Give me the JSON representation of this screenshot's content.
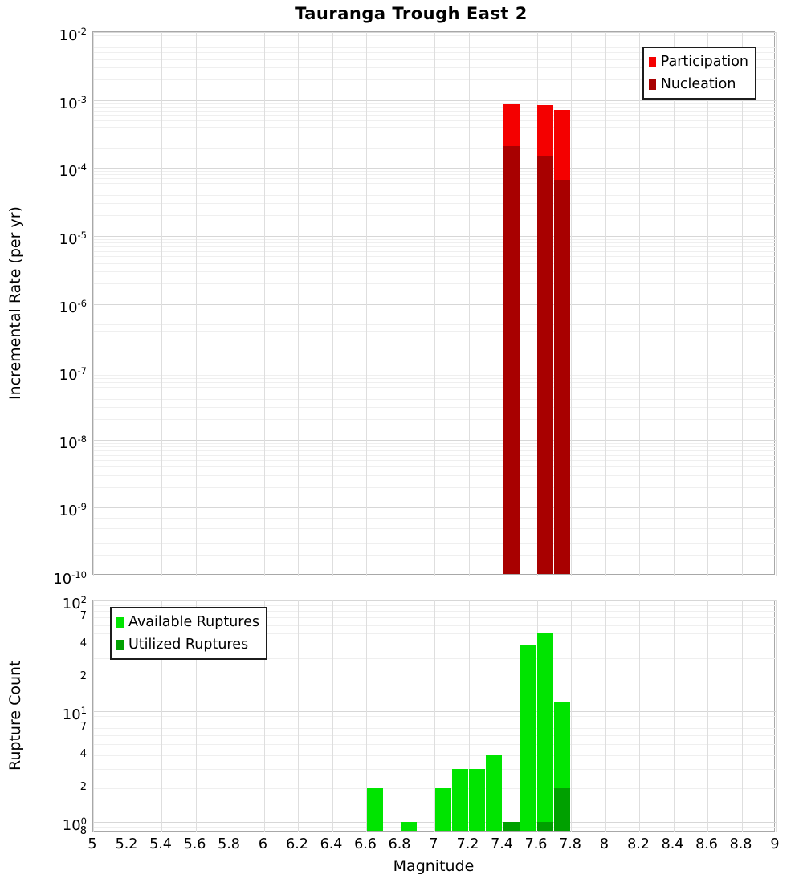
{
  "title": "Tauranga Trough East 2",
  "xlabel": "Magnitude",
  "x_ticks": [
    "5",
    "5.2",
    "5.4",
    "5.6",
    "5.8",
    "6",
    "6.2",
    "6.4",
    "6.6",
    "6.8",
    "7",
    "7.2",
    "7.4",
    "7.6",
    "7.8",
    "8",
    "8.2",
    "8.4",
    "8.6",
    "8.8",
    "9"
  ],
  "colors": {
    "participation": "#f40000",
    "nucleation": "#a80000",
    "available": "#00e400",
    "utilized": "#00a000",
    "grid_major": "#d7d7d7",
    "grid_minor": "#efefef",
    "plot_border": "#a8a8a8",
    "legend_border": "#1c1c1c"
  },
  "chart_data": [
    {
      "type": "bar",
      "panel": "incremental-rate",
      "title": "Tauranga Trough East 2",
      "xlabel": "Magnitude",
      "ylabel": "Incremental Rate (per yr)",
      "y_scale": "log",
      "ylim": [
        1e-10,
        0.01
      ],
      "x_range": [
        5,
        9
      ],
      "x_tick_step": 0.2,
      "grid": true,
      "bar_width_mag": 0.094,
      "y_tick_exponents": [
        "-2",
        "-3",
        "-4",
        "-5",
        "-6",
        "-7",
        "-8",
        "-9",
        "-10"
      ],
      "legend_position": "top-right",
      "series": [
        {
          "name": "Participation",
          "color": "#f40000",
          "x": [
            7.45,
            7.65,
            7.75
          ],
          "values": [
            0.00086,
            0.00083,
            0.00072
          ]
        },
        {
          "name": "Nucleation",
          "color": "#a80000",
          "x": [
            7.45,
            7.65,
            7.75
          ],
          "values": [
            0.00021,
            0.00015,
            6.7e-05
          ]
        }
      ]
    },
    {
      "type": "bar",
      "panel": "rupture-count",
      "xlabel": "Magnitude",
      "ylabel": "Rupture Count",
      "y_scale": "log",
      "ylim": [
        0.8,
        100
      ],
      "x_range": [
        5,
        9
      ],
      "x_tick_step": 0.2,
      "grid": true,
      "bar_width_mag": 0.094,
      "y_major_ticks": [
        {
          "exp": "2",
          "v": 100
        },
        {
          "exp": "1",
          "v": 10
        },
        {
          "exp": "0",
          "v": 1
        }
      ],
      "y_minor_tick_labels": [
        {
          "label": "7",
          "v": 70
        },
        {
          "label": "4",
          "v": 40
        },
        {
          "label": "2",
          "v": 20
        },
        {
          "label": "7",
          "v": 7
        },
        {
          "label": "4",
          "v": 4
        },
        {
          "label": "2",
          "v": 2
        },
        {
          "label": "8",
          "v": 0.8
        }
      ],
      "legend_position": "top-left",
      "series": [
        {
          "name": "Available Ruptures",
          "color": "#00e400",
          "x": [
            6.65,
            6.85,
            7.05,
            7.15,
            7.25,
            7.35,
            7.45,
            7.55,
            7.65,
            7.75
          ],
          "values": [
            2,
            1,
            2,
            3,
            3,
            4,
            1,
            39,
            51,
            12
          ]
        },
        {
          "name": "Utilized Ruptures",
          "color": "#00a000",
          "x": [
            7.45,
            7.65,
            7.75
          ],
          "values": [
            1,
            1,
            2
          ]
        }
      ]
    }
  ]
}
